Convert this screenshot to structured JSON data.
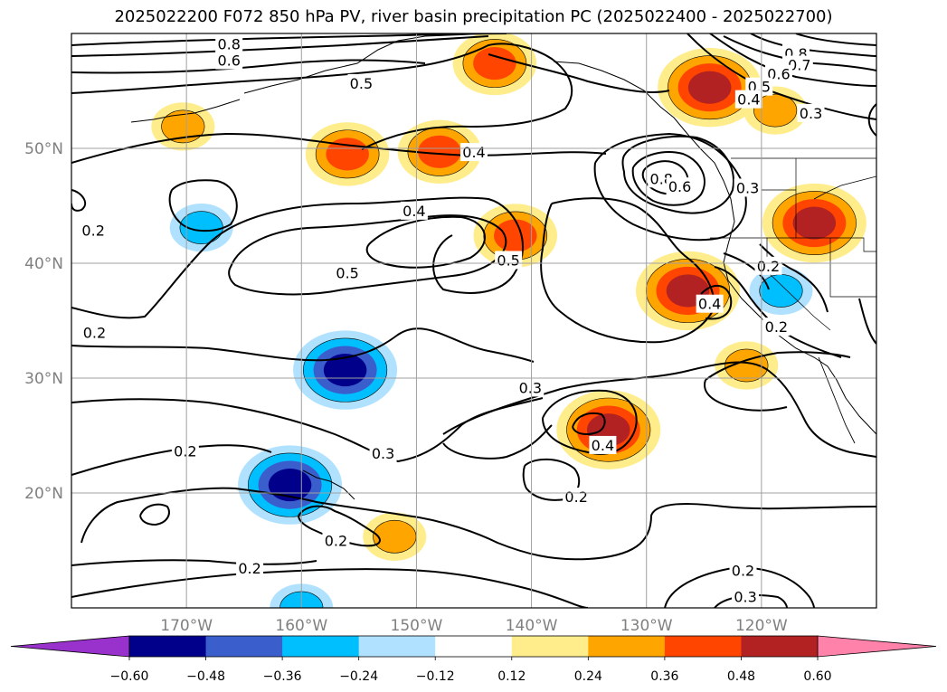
{
  "chart_data": {
    "type": "contour-map",
    "title": "2025022200 F072 850 hPa PV, river basin precipitation PC (2025022400 - 2025022700)",
    "lon_range": [
      -180,
      -110
    ],
    "lat_range": [
      10,
      60
    ],
    "lat_ticks": [
      {
        "value": 20,
        "label": "20°N"
      },
      {
        "value": 30,
        "label": "30°N"
      },
      {
        "value": 40,
        "label": "40°N"
      },
      {
        "value": 50,
        "label": "50°N"
      }
    ],
    "lon_ticks": [
      {
        "value": -170,
        "label": "170°W"
      },
      {
        "value": -160,
        "label": "160°W"
      },
      {
        "value": -150,
        "label": "150°W"
      },
      {
        "value": -140,
        "label": "140°W"
      },
      {
        "value": -130,
        "label": "130°W"
      },
      {
        "value": -120,
        "label": "120°W"
      }
    ],
    "grid": true,
    "contour_labels": [
      {
        "text": "0.8",
        "lon": -166.3,
        "lat": 59.0
      },
      {
        "text": "0.6",
        "lon": -166.3,
        "lat": 57.6
      },
      {
        "text": "0.5",
        "lon": -154.8,
        "lat": 55.6
      },
      {
        "text": "0.4",
        "lon": -145.0,
        "lat": 49.6
      },
      {
        "text": "0.4",
        "lon": -150.2,
        "lat": 44.5
      },
      {
        "text": "0.5",
        "lon": -156.0,
        "lat": 39.1
      },
      {
        "text": "0.5",
        "lon": -142.0,
        "lat": 40.2
      },
      {
        "text": "0.2",
        "lon": -178.0,
        "lat": 33.9
      },
      {
        "text": "0.2",
        "lon": -178.1,
        "lat": 42.8
      },
      {
        "text": "0.3",
        "lon": -140.1,
        "lat": 29.1
      },
      {
        "text": "0.3",
        "lon": -152.9,
        "lat": 23.4
      },
      {
        "text": "0.2",
        "lon": -170.1,
        "lat": 23.6
      },
      {
        "text": "0.4",
        "lon": -133.8,
        "lat": 24.1
      },
      {
        "text": "0.2",
        "lon": -136.1,
        "lat": 19.6
      },
      {
        "text": "0.2",
        "lon": -157.0,
        "lat": 15.8
      },
      {
        "text": "0.2",
        "lon": -164.5,
        "lat": 13.4
      },
      {
        "text": "0.2",
        "lon": -121.6,
        "lat": 13.2
      },
      {
        "text": "0.3",
        "lon": -121.4,
        "lat": 10.9
      },
      {
        "text": "0.8",
        "lon": -117.0,
        "lat": 58.2
      },
      {
        "text": "0.7",
        "lon": -116.7,
        "lat": 57.2
      },
      {
        "text": "0.6",
        "lon": -118.5,
        "lat": 56.4
      },
      {
        "text": "0.5",
        "lon": -120.2,
        "lat": 55.3
      },
      {
        "text": "0.4",
        "lon": -121.1,
        "lat": 54.2
      },
      {
        "text": "0.3",
        "lon": -115.7,
        "lat": 53.0
      },
      {
        "text": "0.8",
        "lon": -128.7,
        "lat": 47.3
      },
      {
        "text": "0.6",
        "lon": -127.1,
        "lat": 46.6
      },
      {
        "text": "0.3",
        "lon": -121.2,
        "lat": 46.5
      },
      {
        "text": "0.4",
        "lon": -124.5,
        "lat": 36.4
      },
      {
        "text": "0.2",
        "lon": -119.4,
        "lat": 39.7
      },
      {
        "text": "0.2",
        "lon": -118.7,
        "lat": 34.4
      }
    ],
    "colorbar": {
      "ticks": [
        "−0.60",
        "−0.48",
        "−0.36",
        "−0.24",
        "−0.12",
        "0.12",
        "0.24",
        "0.36",
        "0.48",
        "0.60"
      ],
      "levels": [
        -0.6,
        -0.48,
        -0.36,
        -0.24,
        -0.12,
        0.12,
        0.24,
        0.36,
        0.48,
        0.6
      ],
      "colors": [
        "#9932cc",
        "#00008b",
        "#3a5fcd",
        "#00bfff",
        "#b0e2ff",
        "#ffffff",
        "#ffec8b",
        "#ffa500",
        "#ff4500",
        "#b22222",
        "#ff82ab"
      ],
      "extend": "both"
    },
    "shaded_features": [
      {
        "sign": "positive",
        "max_level": 0.36,
        "lon": -143.2,
        "lat": 57.4
      },
      {
        "sign": "positive",
        "max_level": 0.48,
        "lon": -124.5,
        "lat": 55.3
      },
      {
        "sign": "positive",
        "max_level": 0.24,
        "lon": -118.8,
        "lat": 53.3
      },
      {
        "sign": "positive",
        "max_level": 0.24,
        "lon": -170.3,
        "lat": 51.9
      },
      {
        "sign": "positive",
        "max_level": 0.36,
        "lon": -156.0,
        "lat": 49.5
      },
      {
        "sign": "positive",
        "max_level": 0.36,
        "lon": -148.0,
        "lat": 49.7
      },
      {
        "sign": "positive",
        "max_level": 0.36,
        "lon": -141.4,
        "lat": 42.4
      },
      {
        "sign": "positive",
        "max_level": 0.48,
        "lon": -115.4,
        "lat": 43.5
      },
      {
        "sign": "positive",
        "max_level": 0.48,
        "lon": -126.4,
        "lat": 37.6
      },
      {
        "sign": "positive",
        "max_level": 0.48,
        "lon": -133.3,
        "lat": 25.5
      },
      {
        "sign": "positive",
        "max_level": 0.24,
        "lon": -121.3,
        "lat": 31.1
      },
      {
        "sign": "positive",
        "max_level": 0.24,
        "lon": -151.9,
        "lat": 16.2
      },
      {
        "sign": "negative",
        "min_level": -0.48,
        "lon": -156.2,
        "lat": 30.7
      },
      {
        "sign": "negative",
        "min_level": -0.48,
        "lon": -161.0,
        "lat": 20.7
      },
      {
        "sign": "negative",
        "min_level": -0.24,
        "lon": -160.0,
        "lat": 10.0
      },
      {
        "sign": "negative",
        "min_level": -0.24,
        "lon": -118.3,
        "lat": 37.6
      },
      {
        "sign": "negative",
        "min_level": -0.24,
        "lon": -168.7,
        "lat": 43.1
      }
    ]
  }
}
